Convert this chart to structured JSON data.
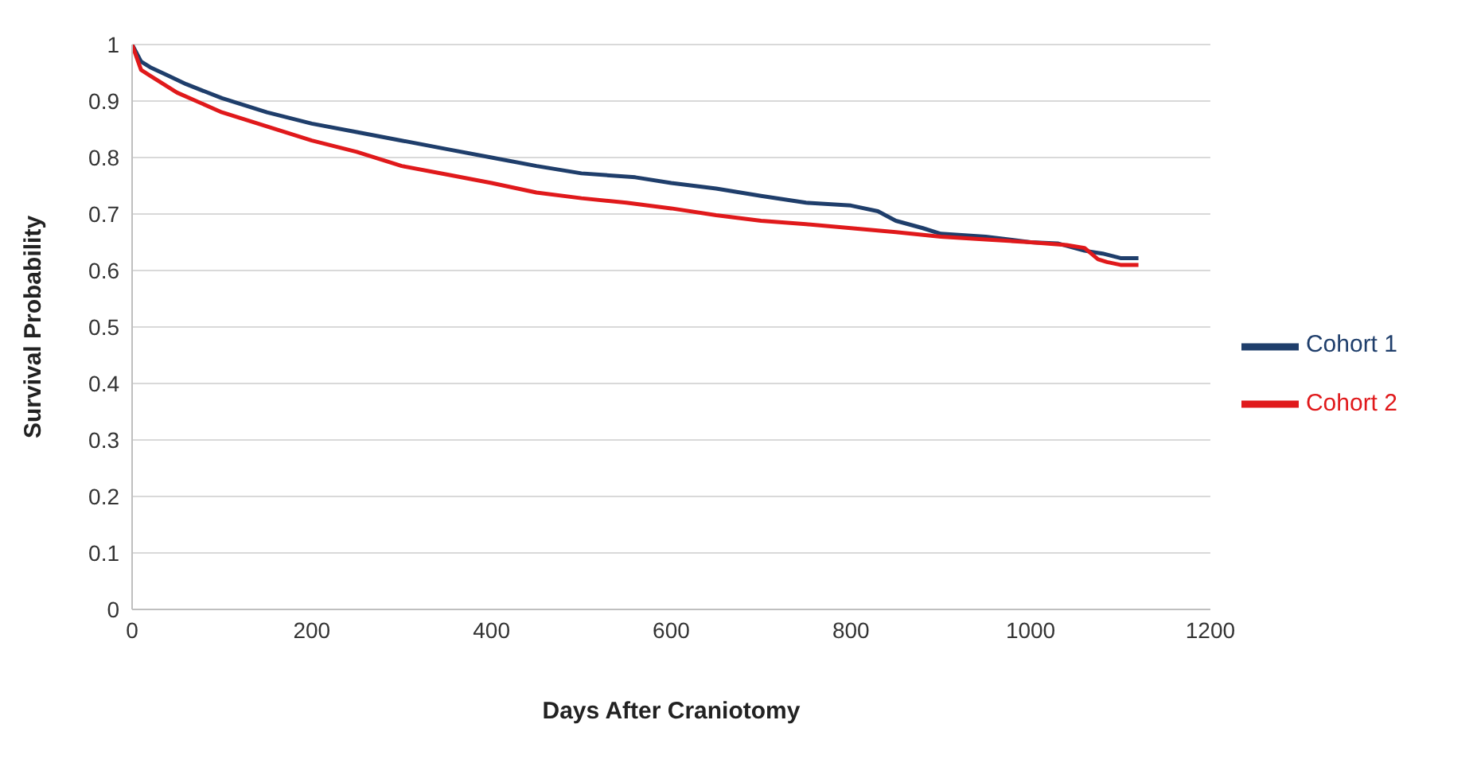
{
  "chart_data": {
    "type": "line",
    "xlabel": "Days After Craniotomy",
    "ylabel": "Survival Probability",
    "xlim": [
      0,
      1200
    ],
    "xticks": [
      0,
      200,
      400,
      600,
      800,
      1000,
      1200
    ],
    "ylim": [
      0,
      1
    ],
    "yticks": [
      0,
      0.1,
      0.2,
      0.3,
      0.4,
      0.5,
      0.6,
      0.7,
      0.8,
      0.9,
      1
    ],
    "grid": "y",
    "legend": "right",
    "marker": "none",
    "line_style": "solid",
    "series": [
      {
        "name": "Cohort 1",
        "color": "#1f3e6b",
        "x": [
          0,
          10,
          20,
          40,
          60,
          100,
          150,
          200,
          250,
          300,
          350,
          400,
          450,
          500,
          560,
          600,
          650,
          700,
          750,
          800,
          830,
          850,
          880,
          900,
          950,
          1000,
          1030,
          1060,
          1080,
          1100,
          1120
        ],
        "values": [
          1,
          0.97,
          0.96,
          0.945,
          0.93,
          0.905,
          0.88,
          0.86,
          0.845,
          0.83,
          0.815,
          0.8,
          0.785,
          0.772,
          0.765,
          0.755,
          0.745,
          0.732,
          0.72,
          0.715,
          0.705,
          0.688,
          0.675,
          0.665,
          0.66,
          0.65,
          0.648,
          0.635,
          0.63,
          0.622,
          0.622
        ]
      },
      {
        "name": "Cohort 2",
        "color": "#e0191b",
        "x": [
          0,
          10,
          20,
          50,
          100,
          150,
          200,
          250,
          300,
          350,
          400,
          450,
          500,
          550,
          600,
          650,
          700,
          750,
          800,
          850,
          900,
          950,
          1000,
          1040,
          1060,
          1075,
          1085,
          1100,
          1120
        ],
        "values": [
          1,
          0.955,
          0.945,
          0.915,
          0.88,
          0.855,
          0.83,
          0.81,
          0.785,
          0.77,
          0.755,
          0.738,
          0.728,
          0.72,
          0.71,
          0.698,
          0.688,
          0.682,
          0.675,
          0.668,
          0.66,
          0.655,
          0.65,
          0.645,
          0.64,
          0.62,
          0.615,
          0.61,
          0.61
        ]
      }
    ]
  }
}
